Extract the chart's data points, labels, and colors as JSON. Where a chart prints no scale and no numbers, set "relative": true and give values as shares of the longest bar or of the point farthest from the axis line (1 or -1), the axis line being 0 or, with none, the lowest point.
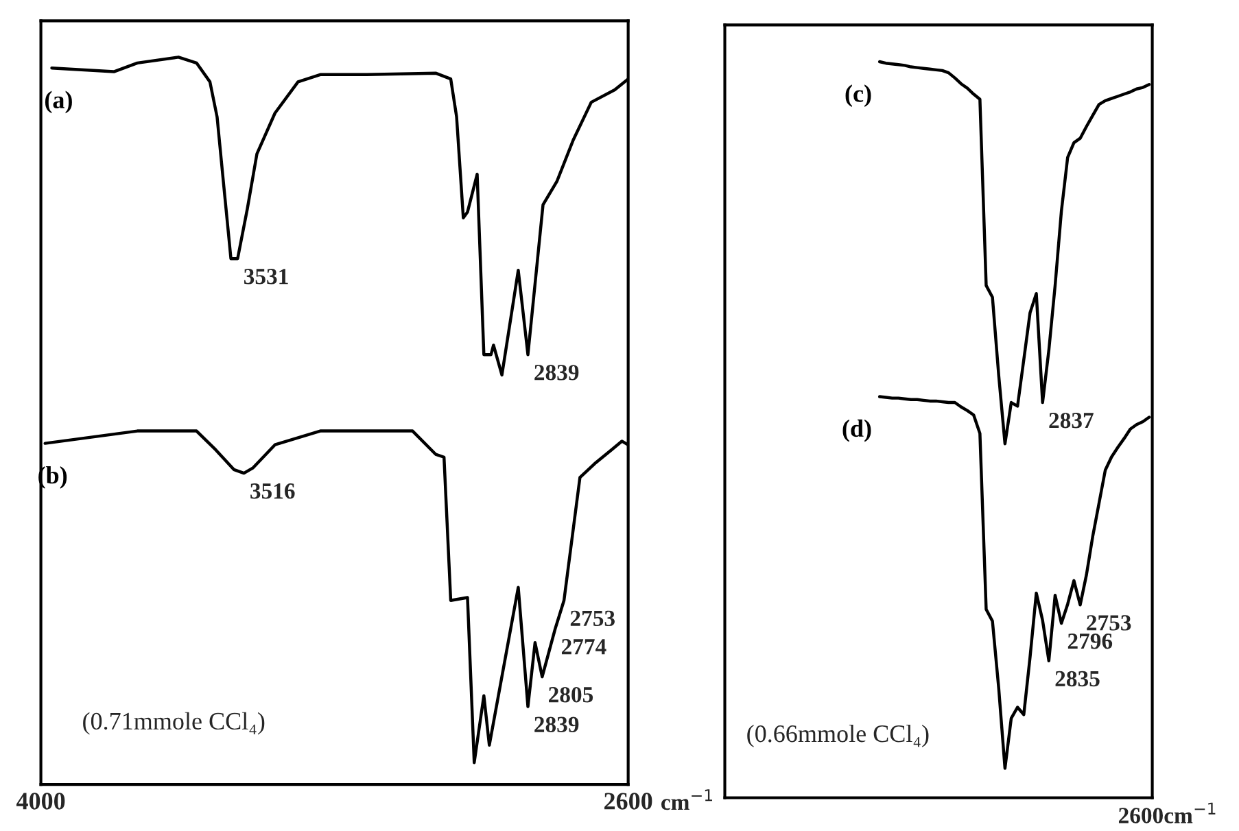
{
  "chart_data": [
    {
      "type": "line",
      "relative": true,
      "xlim": [
        4000,
        2600
      ],
      "xticks": [
        4000,
        2600
      ],
      "xlabel": "cm$^{−1}$",
      "series": [
        {
          "name": "(a)",
          "color": "#000000",
          "x": [
            3974,
            3826,
            3770,
            3672,
            3629,
            3597,
            3580,
            3564,
            3547,
            3531,
            3508,
            3485,
            3442,
            3387,
            3334,
            3223,
            3059,
            3023,
            3009,
            2993,
            2983,
            2960,
            2944,
            2927,
            2921,
            2901,
            2862,
            2839,
            2803,
            2770,
            2731,
            2688,
            2632,
            2600
          ],
          "values": [
            0.985,
            0.98,
            0.992,
            1.0,
            0.992,
            0.966,
            0.918,
            0.823,
            0.723,
            0.723,
            0.791,
            0.867,
            0.923,
            0.966,
            0.976,
            0.976,
            0.978,
            0.97,
            0.918,
            0.779,
            0.787,
            0.839,
            0.591,
            0.591,
            0.604,
            0.563,
            0.707,
            0.591,
            0.797,
            0.829,
            0.886,
            0.938,
            0.955,
            0.97
          ]
        },
        {
          "name": "(b)",
          "color": "#000000",
          "x": [
            3990,
            3770,
            3629,
            3583,
            3540,
            3516,
            3495,
            3442,
            3334,
            3114,
            3059,
            3039,
            3023,
            2983,
            2967,
            2944,
            2931,
            2862,
            2839,
            2822,
            2805,
            2774,
            2753,
            2715,
            2680,
            2640,
            2615,
            2600
          ],
          "values": [
            0.469,
            0.486,
            0.486,
            0.46,
            0.433,
            0.428,
            0.435,
            0.467,
            0.486,
            0.486,
            0.454,
            0.45,
            0.253,
            0.257,
            0.03,
            0.122,
            0.054,
            0.271,
            0.107,
            0.195,
            0.148,
            0.214,
            0.253,
            0.422,
            0.441,
            0.46,
            0.472,
            0.467
          ]
        }
      ],
      "annotations": [
        {
          "text": "3531",
          "x": 3531,
          "y": 0.723
        },
        {
          "text": "2839",
          "x": 2839,
          "y": 0.591
        },
        {
          "text": "3516",
          "x": 3516,
          "y": 0.428
        },
        {
          "text": "2839",
          "x": 2839,
          "y": 0.107
        },
        {
          "text": "2805",
          "x": 2805,
          "y": 0.148
        },
        {
          "text": "2774",
          "x": 2774,
          "y": 0.214
        },
        {
          "text": "2753",
          "x": 2753,
          "y": 0.253
        },
        "(0.71mmole CCl₄)"
      ]
    },
    {
      "type": "line",
      "relative": true,
      "categories": [
        null,
        null,
        null,
        null,
        null,
        null,
        null,
        null,
        null,
        null,
        null,
        null,
        null,
        null,
        null,
        null,
        null,
        null,
        null,
        null,
        null,
        null,
        null,
        null,
        null,
        null,
        null,
        null,
        null,
        null,
        null,
        null,
        null,
        null,
        null,
        null,
        null,
        null,
        null,
        null,
        null,
        null,
        null,
        null
      ],
      "series": [
        {
          "name": "(c)",
          "color": "#000000",
          "values": [
            1.0,
            0.998,
            0.997,
            0.996,
            0.995,
            0.993,
            0.992,
            0.991,
            0.99,
            0.989,
            0.988,
            0.985,
            0.978,
            0.97,
            0.964,
            0.956,
            0.949,
            0.696,
            0.68,
            0.574,
            0.481,
            0.537,
            0.532,
            0.595,
            0.659,
            0.685,
            0.537,
            0.608,
            0.696,
            0.797,
            0.87,
            0.89,
            0.896,
            0.912,
            0.927,
            0.942,
            0.947,
            0.95,
            0.953,
            0.956,
            0.959,
            0.963,
            0.965,
            0.969
          ]
        },
        {
          "name": "(d)",
          "color": "#000000",
          "values": [
            0.545,
            0.544,
            0.543,
            0.543,
            0.542,
            0.541,
            0.541,
            0.54,
            0.539,
            0.539,
            0.538,
            0.537,
            0.537,
            0.531,
            0.526,
            0.52,
            0.495,
            0.256,
            0.24,
            0.149,
            0.04,
            0.108,
            0.123,
            0.113,
            0.191,
            0.278,
            0.241,
            0.186,
            0.275,
            0.237,
            0.263,
            0.295,
            0.262,
            0.303,
            0.355,
            0.4,
            0.445,
            0.463,
            0.476,
            0.488,
            0.501,
            0.507,
            0.511,
            0.517
          ]
        }
      ],
      "annotations": [
        "2837",
        "2835",
        "2796",
        "2753",
        "(0.66mmole CCl₄)",
        "2600cm$^{−1}$"
      ]
    }
  ]
}
